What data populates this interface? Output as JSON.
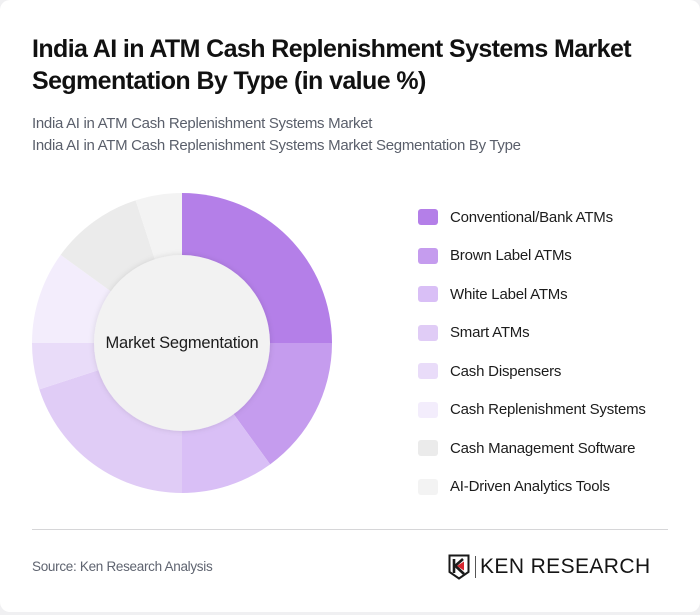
{
  "header": {
    "title": "India AI in ATM Cash Replenishment Systems Market Segmentation By Type (in value %)",
    "subtitle_line1": "India AI in ATM Cash Replenishment Systems Market",
    "subtitle_line2": "India AI in ATM Cash Replenishment Systems Market Segmentation By Type"
  },
  "chart": {
    "center_label": "Market Segmentation"
  },
  "chart_data": {
    "type": "pie",
    "subtype": "donut",
    "title": "India AI in ATM Cash Replenishment Systems Market Segmentation By Type (in value %)",
    "center_label": "Market Segmentation",
    "legend_position": "right",
    "categories": [
      "Conventional/Bank ATMs",
      "Brown Label ATMs",
      "White Label ATMs",
      "Smart ATMs",
      "Cash Dispensers",
      "Cash Replenishment Systems",
      "Cash Management Software",
      "AI-Driven Analytics Tools"
    ],
    "values": [
      25,
      15,
      10,
      20,
      5,
      10,
      10,
      5
    ],
    "unit": "%",
    "colors": [
      "#b47fe8",
      "#c59cee",
      "#d9bff6",
      "#e0ccf6",
      "#e9dcf9",
      "#f3edfc",
      "#ebebeb",
      "#f3f3f3"
    ]
  },
  "legend": {
    "items": [
      {
        "label": "Conventional/Bank ATMs",
        "color": "#b47fe8"
      },
      {
        "label": "Brown Label ATMs",
        "color": "#c59cee"
      },
      {
        "label": "White Label ATMs",
        "color": "#d9bff6"
      },
      {
        "label": "Smart ATMs",
        "color": "#e0ccf6"
      },
      {
        "label": "Cash Dispensers",
        "color": "#e9dcf9"
      },
      {
        "label": "Cash Replenishment Systems",
        "color": "#f3edfc"
      },
      {
        "label": "Cash Management Software",
        "color": "#ebebeb"
      },
      {
        "label": "AI-Driven Analytics Tools",
        "color": "#f3f3f3"
      }
    ]
  },
  "footer": {
    "source": "Source: Ken Research Analysis",
    "logo_text": "KEN RESEARCH"
  }
}
